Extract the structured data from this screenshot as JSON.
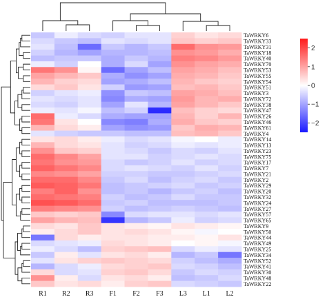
{
  "chart_data": {
    "type": "heatmap",
    "columns": [
      "R1",
      "R2",
      "R3",
      "F1",
      "F2",
      "F3",
      "L3",
      "L1",
      "L2"
    ],
    "rows": [
      "TaWRKY6",
      "TaWRKY33",
      "TaWRKY31",
      "TaWRKY18",
      "TaWRKY40",
      "TaWRKY70",
      "TaWRKY53",
      "TaWRKY55",
      "TaWRKY54",
      "TaWRKY51",
      "TaWRKY3",
      "TaWRKY72",
      "TaWRKY38",
      "TaWRKY47",
      "TaWRKY26",
      "TaWRKY46",
      "TaWRKY61",
      "TaWRKY4",
      "TaWRKY14",
      "TaWRKY13",
      "TaWRKY23",
      "TaWRKY75",
      "TaWRKY17",
      "TaWRKY7",
      "TaWRKY21",
      "TaWRKY2",
      "TaWRKY29",
      "TaWRKY20",
      "TaWRKY32",
      "TaWRKY24",
      "TaWRKY27",
      "TaWRKY57",
      "TaWRKY65",
      "TaWRKY9",
      "TaWRKY50",
      "TaWRKY44",
      "TaWRKY49",
      "TaWRKY25",
      "TaWRKY34",
      "TaWRKY52",
      "TaWRKY41",
      "TaWRKY30",
      "TaWRKY48",
      "TaWRKY22"
    ],
    "values": [
      [
        -0.6,
        -0.2,
        -0.4,
        -0.5,
        -0.3,
        -0.3,
        0.5,
        0.3,
        0.4
      ],
      [
        -0.4,
        -0.6,
        -0.7,
        -0.3,
        -0.4,
        -0.3,
        0.6,
        0.5,
        0.6
      ],
      [
        -0.3,
        -0.7,
        -1.6,
        -0.6,
        -0.8,
        -0.6,
        1.6,
        1.2,
        1.1
      ],
      [
        -0.5,
        -0.8,
        -1.0,
        -0.8,
        -0.8,
        -0.7,
        1.2,
        1.1,
        0.9
      ],
      [
        -0.7,
        -0.6,
        -0.6,
        -0.9,
        -0.6,
        -0.8,
        1.4,
        1.3,
        1.1
      ],
      [
        -0.2,
        -0.5,
        0.0,
        -0.9,
        -0.4,
        -1.0,
        1.2,
        1.0,
        0.9
      ],
      [
        1.5,
        1.2,
        0.1,
        -1.6,
        -1.0,
        -0.7,
        1.0,
        0.9,
        0.7
      ],
      [
        1.0,
        0.8,
        0.6,
        -0.9,
        -1.2,
        -1.0,
        0.9,
        0.8,
        0.6
      ],
      [
        0.8,
        0.5,
        0.4,
        -1.0,
        -0.9,
        -0.7,
        0.8,
        0.6,
        0.5
      ],
      [
        0.4,
        0.6,
        0.3,
        -0.5,
        -1.1,
        -1.0,
        0.7,
        0.8,
        0.6
      ],
      [
        -0.5,
        -0.3,
        -0.2,
        -1.2,
        -0.6,
        -0.7,
        1.0,
        0.9,
        0.7
      ],
      [
        -0.3,
        -0.4,
        -0.3,
        -1.3,
        -0.9,
        -1.0,
        1.1,
        0.8,
        0.9
      ],
      [
        -0.4,
        -0.5,
        -0.3,
        -1.0,
        -0.3,
        -0.8,
        1.0,
        0.8,
        0.6
      ],
      [
        -0.2,
        -0.3,
        -0.1,
        -0.7,
        -0.5,
        -2.3,
        0.7,
        0.5,
        0.4
      ],
      [
        1.6,
        -0.2,
        -0.4,
        -0.9,
        -1.0,
        -1.0,
        0.8,
        0.5,
        0.8
      ],
      [
        1.5,
        0.3,
        0.0,
        -1.3,
        -1.4,
        -0.9,
        0.9,
        0.6,
        0.5
      ],
      [
        0.8,
        0.4,
        0.2,
        -1.0,
        -1.2,
        -1.1,
        0.6,
        0.9,
        0.8
      ],
      [
        -0.3,
        -0.5,
        -0.6,
        -0.6,
        -0.7,
        -0.7,
        0.7,
        0.8,
        0.6
      ],
      [
        0.3,
        0.4,
        0.2,
        -0.2,
        -0.4,
        -0.3,
        -0.1,
        0.0,
        -0.2
      ],
      [
        0.8,
        0.4,
        0.3,
        -0.3,
        -0.5,
        -0.4,
        -0.2,
        -0.3,
        -0.2
      ],
      [
        1.2,
        0.6,
        0.5,
        -0.3,
        -0.4,
        -0.6,
        -0.4,
        -0.5,
        -0.3
      ],
      [
        1.6,
        1.3,
        1.0,
        -0.3,
        -0.3,
        -0.5,
        -0.4,
        -0.3,
        -0.4
      ],
      [
        1.5,
        1.2,
        1.1,
        -0.4,
        -0.6,
        -0.5,
        -0.3,
        -0.5,
        -0.4
      ],
      [
        1.7,
        1.5,
        1.3,
        -0.4,
        -0.3,
        -0.4,
        -0.5,
        -0.3,
        -0.5
      ],
      [
        1.3,
        1.2,
        1.0,
        -0.5,
        -0.5,
        -0.6,
        -0.6,
        -0.5,
        -0.4
      ],
      [
        1.6,
        1.6,
        1.3,
        -0.6,
        -0.4,
        -0.7,
        -0.5,
        -0.4,
        -0.6
      ],
      [
        1.8,
        1.7,
        1.5,
        -0.7,
        -0.6,
        -0.5,
        -0.4,
        -0.6,
        -0.5
      ],
      [
        1.4,
        1.7,
        1.2,
        -0.7,
        -0.6,
        -0.8,
        -0.6,
        -0.5,
        -0.7
      ],
      [
        1.6,
        1.5,
        1.4,
        -0.5,
        -0.7,
        -0.6,
        -0.4,
        -0.6,
        -0.6
      ],
      [
        1.9,
        1.8,
        1.6,
        -0.6,
        -0.5,
        -0.7,
        -0.7,
        -0.7,
        -0.6
      ],
      [
        1.4,
        1.3,
        1.2,
        -0.5,
        -0.7,
        -0.6,
        -0.5,
        -0.6,
        -0.7
      ],
      [
        0.6,
        0.5,
        0.6,
        -1.3,
        -0.4,
        -0.3,
        -0.3,
        -0.4,
        -0.3
      ],
      [
        1.0,
        0.8,
        0.7,
        -2.2,
        -0.8,
        -0.6,
        -0.2,
        -0.5,
        -0.4
      ],
      [
        0.4,
        0.3,
        0.6,
        0.3,
        0.2,
        0.1,
        0.3,
        0.2,
        0.1
      ],
      [
        0.2,
        0.4,
        0.6,
        0.3,
        0.4,
        0.3,
        0.1,
        -0.1,
        0.0
      ],
      [
        -1.5,
        0.4,
        0.2,
        0.3,
        0.3,
        0.2,
        0.2,
        0.1,
        0.3
      ],
      [
        -0.4,
        -0.3,
        -0.2,
        0.4,
        0.3,
        0.2,
        0.0,
        0.1,
        -0.1
      ],
      [
        -0.2,
        -0.4,
        -0.7,
        0.5,
        0.6,
        0.7,
        -0.4,
        -0.2,
        -0.3
      ],
      [
        -0.6,
        0.2,
        -0.3,
        0.3,
        0.4,
        0.2,
        -0.8,
        -0.6,
        -1.5
      ],
      [
        -0.3,
        0.3,
        0.5,
        0.6,
        0.5,
        0.4,
        -0.5,
        -0.7,
        -0.9
      ],
      [
        -0.8,
        -0.4,
        -0.2,
        0.4,
        0.5,
        0.6,
        -0.4,
        -0.5,
        -0.7
      ],
      [
        0.4,
        -0.4,
        -0.3,
        0.5,
        0.6,
        0.4,
        -0.6,
        -0.4,
        -0.5
      ],
      [
        1.2,
        0.2,
        -0.4,
        0.3,
        0.4,
        0.2,
        -0.7,
        -0.6,
        -0.4
      ],
      [
        0.6,
        0.3,
        0.4,
        0.2,
        0.5,
        0.6,
        -0.4,
        -0.5,
        -0.6
      ]
    ],
    "colorbar": {
      "ticks": [
        2,
        1,
        0,
        -1,
        -2
      ],
      "min": -2.5,
      "max": 2.5
    },
    "colors": {
      "low": "#1a1aff",
      "mid": "#ffffff",
      "high": "#ff1a1a"
    },
    "title": "",
    "legend": "right"
  }
}
